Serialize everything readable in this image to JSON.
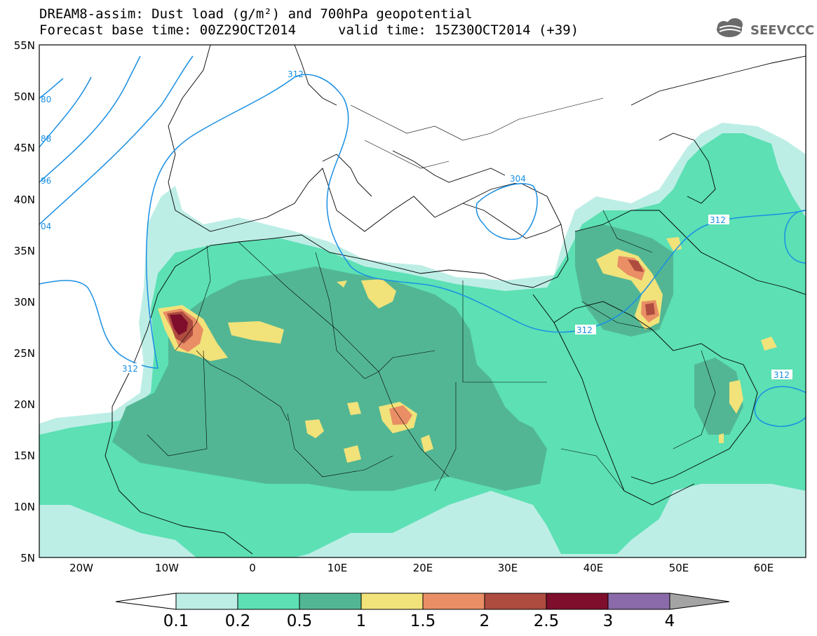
{
  "header": {
    "title_line1": "DREAM8-assim: Dust load (g/m²) and 700hPa geopotential",
    "title_line2": "Forecast base time: 00Z29OCT2014",
    "valid_time": "valid time: 15Z30OCT2014 (+39)",
    "logo_text": "SEEVCCC"
  },
  "axes": {
    "lat_labels": [
      "55N",
      "50N",
      "45N",
      "40N",
      "35N",
      "30N",
      "25N",
      "20N",
      "15N",
      "10N",
      "5N"
    ],
    "lon_labels": [
      "20W",
      "10W",
      "0",
      "10E",
      "20E",
      "30E",
      "40E",
      "50E",
      "60E"
    ],
    "lon_range": [
      "25W",
      "65E"
    ],
    "lat_range": [
      "5N",
      "55N"
    ]
  },
  "contours": {
    "color": "#1a8fe3",
    "labels": [
      "312",
      "304",
      "312",
      "312",
      "312",
      "312",
      "80",
      "88",
      "96",
      "04"
    ]
  },
  "colorbar": {
    "levels": [
      "0.1",
      "0.2",
      "0.5",
      "1",
      "1.5",
      "2",
      "2.5",
      "3",
      "4"
    ],
    "colors": [
      "#bdeee6",
      "#5ce0b4",
      "#52b694",
      "#f1e27a",
      "#e98e65",
      "#ae4c3f",
      "#7e0e2c",
      "#8a6aa8"
    ],
    "under_color": "#ffffff",
    "over_color": "#a4a4a4"
  }
}
